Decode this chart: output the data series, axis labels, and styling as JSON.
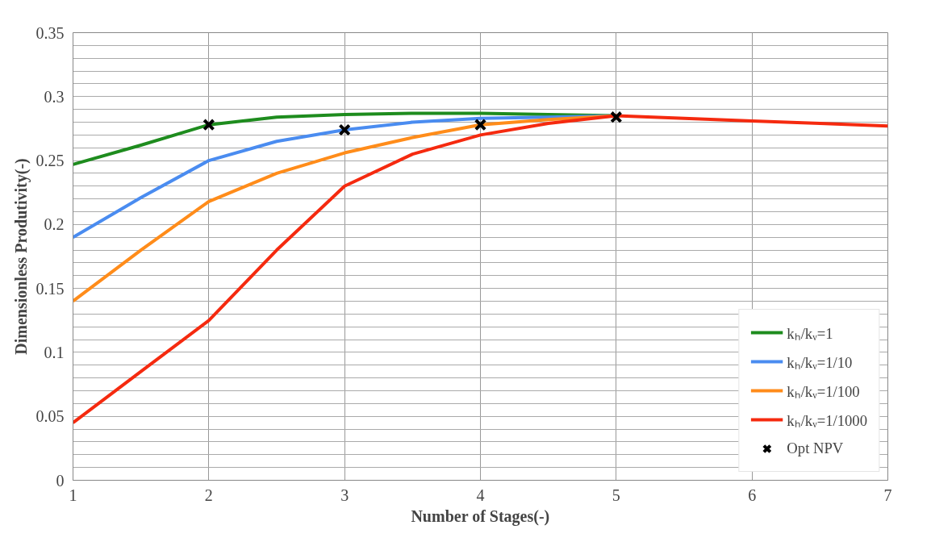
{
  "chart_data": {
    "type": "line",
    "xlabel": "Number of Stages(-)",
    "ylabel": "Dimensionless Produtivity(-)",
    "x": [
      1,
      1.5,
      2,
      2.5,
      3,
      3.5,
      4,
      4.5,
      5,
      5.5,
      6,
      6.5,
      7
    ],
    "series": [
      {
        "name": "kₕ/kᵥ=1",
        "color": "#1e8c1e",
        "values": [
          0.247,
          0.262,
          0.278,
          0.284,
          0.286,
          0.287,
          0.287,
          0.286,
          0.285,
          null,
          null,
          null,
          null
        ]
      },
      {
        "name": "kₕ/kᵥ=1/10",
        "color": "#4a8cf0",
        "values": [
          0.19,
          0.221,
          0.25,
          0.265,
          0.274,
          0.28,
          0.283,
          0.284,
          0.285,
          null,
          null,
          null,
          null
        ]
      },
      {
        "name": "kₕ/kᵥ=1/100",
        "color": "#ff8c1a",
        "values": [
          0.14,
          0.18,
          0.218,
          0.24,
          0.256,
          0.268,
          0.278,
          0.282,
          0.285,
          null,
          null,
          null,
          null
        ]
      },
      {
        "name": "kₕ/kᵥ=1/1000",
        "color": "#f52a0f",
        "values": [
          0.045,
          0.085,
          0.125,
          0.18,
          0.23,
          0.255,
          0.27,
          0.279,
          0.285,
          0.283,
          0.281,
          0.279,
          0.277
        ]
      },
      {
        "name": "Opt NPV",
        "type": "scatter",
        "marker": "cross",
        "color": "#000000",
        "x": [
          2,
          3,
          4,
          5
        ],
        "values": [
          0.278,
          0.274,
          0.278,
          0.284
        ]
      }
    ],
    "xlim": [
      1,
      7
    ],
    "xticks": [
      1,
      2,
      3,
      4,
      5,
      6,
      7
    ],
    "ylim": [
      0,
      0.35
    ],
    "yticks": [
      0,
      {
        "value": 0.01,
        "label": null
      },
      {
        "value": 0.02,
        "label": null
      },
      {
        "value": 0.03,
        "label": null
      },
      {
        "value": 0.04,
        "label": null
      },
      0.05,
      {
        "value": 0.06,
        "label": null
      },
      {
        "value": 0.07,
        "label": null
      },
      {
        "value": 0.08,
        "label": null
      },
      {
        "value": 0.09,
        "label": null
      },
      0.1,
      {
        "value": 0.11,
        "label": null
      },
      {
        "value": 0.12,
        "label": null
      },
      {
        "value": 0.13,
        "label": null
      },
      {
        "value": 0.14,
        "label": null
      },
      0.15,
      {
        "value": 0.16,
        "label": null
      },
      {
        "value": 0.17,
        "label": null
      },
      {
        "value": 0.18,
        "label": null
      },
      {
        "value": 0.19,
        "label": null
      },
      0.2,
      {
        "value": 0.21,
        "label": null
      },
      {
        "value": 0.22,
        "label": null
      },
      {
        "value": 0.23,
        "label": null
      },
      {
        "value": 0.24,
        "label": null
      },
      0.25,
      {
        "value": 0.26,
        "label": null
      },
      {
        "value": 0.27,
        "label": null
      },
      {
        "value": 0.28,
        "label": null
      },
      {
        "value": 0.29,
        "label": null
      },
      0.3,
      {
        "value": 0.31,
        "label": null
      },
      {
        "value": 0.32,
        "label": null
      },
      {
        "value": 0.33,
        "label": null
      },
      {
        "value": 0.34,
        "label": null
      },
      0.35
    ],
    "grid": true,
    "legend": "bottom right",
    "line_style": "solid"
  }
}
